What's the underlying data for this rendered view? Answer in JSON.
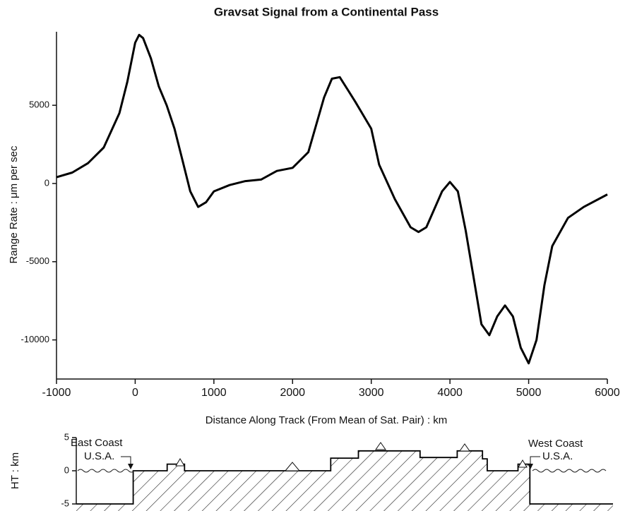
{
  "chart_data": [
    {
      "type": "line",
      "title": "Gravsat Signal from a Continental Pass",
      "xlabel": "Distance Along Track (From Mean of Sat. Pair) : km",
      "ylabel": "Range Rate : μm per sec",
      "x": [
        -1000,
        -800,
        -600,
        -400,
        -200,
        -100,
        0,
        50,
        100,
        200,
        300,
        400,
        500,
        600,
        700,
        800,
        900,
        1000,
        1200,
        1400,
        1600,
        1800,
        2000,
        2200,
        2400,
        2500,
        2600,
        2700,
        2800,
        3000,
        3100,
        3300,
        3500,
        3600,
        3700,
        3900,
        4000,
        4100,
        4200,
        4300,
        4400,
        4500,
        4600,
        4700,
        4800,
        4900,
        5000,
        5100,
        5200,
        5300,
        5500,
        5700,
        6000
      ],
      "values": [
        400,
        700,
        1300,
        2300,
        4500,
        6500,
        9000,
        9500,
        9300,
        8000,
        6200,
        5000,
        3500,
        1500,
        -500,
        -1500,
        -1200,
        -500,
        -100,
        150,
        250,
        800,
        1000,
        2000,
        5500,
        6700,
        6800,
        6000,
        5200,
        3500,
        1200,
        -1000,
        -2800,
        -3100,
        -2800,
        -500,
        100,
        -500,
        -3000,
        -6000,
        -9000,
        -9700,
        -8500,
        -7800,
        -8500,
        -10500,
        -11500,
        -10000,
        -6500,
        -4000,
        -2200,
        -1500,
        -700
      ],
      "color": "#000000",
      "xlim": [
        -1000,
        6000
      ],
      "ylim": [
        -12500,
        9700
      ],
      "xticks": [
        -1000,
        0,
        1000,
        2000,
        3000,
        4000,
        5000,
        6000
      ],
      "yticks": [
        5000,
        0,
        -5000,
        -10000
      ]
    },
    {
      "type": "step",
      "ylabel": "HT : km",
      "x": [
        -1000,
        0,
        430,
        650,
        2500,
        2850,
        3630,
        4100,
        4420,
        4480,
        4870,
        5020
      ],
      "values": [
        -5,
        0,
        1,
        0,
        1.9,
        3,
        2,
        3,
        1.8,
        0,
        1,
        -5
      ],
      "color": "#000000",
      "xlim": [
        -720,
        6000
      ],
      "ylim": [
        -5,
        5
      ],
      "yticks": [
        5,
        0,
        -5
      ],
      "annotations": [
        "East Coast",
        "U.S.A.",
        "West Coast",
        "U.S.A."
      ]
    }
  ]
}
